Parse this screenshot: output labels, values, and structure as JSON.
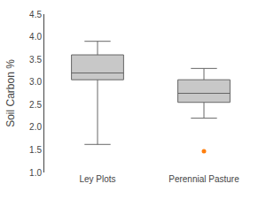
{
  "chart_data": {
    "type": "box",
    "categories": [
      "Ley Plots",
      "Perennial Pasture"
    ],
    "values": [
      {
        "whislo": 1.62,
        "q1": 3.05,
        "med": 3.2,
        "q3": 3.6,
        "whishi": 3.9,
        "fliers": []
      },
      {
        "whislo": 2.2,
        "q1": 2.55,
        "med": 2.75,
        "q3": 3.05,
        "whishi": 3.3,
        "fliers": [
          1.47
        ]
      }
    ],
    "color": "#c8c8c8",
    "ylabel": "Soil Carbon %",
    "ylim": [
      1.0,
      4.5
    ],
    "yticks": [
      {
        "value": 1.0,
        "label": "1.0"
      },
      1.5,
      {
        "value": 2.0,
        "label": "2.0"
      },
      2.5,
      {
        "value": 3.0,
        "label": "3.0"
      },
      3.5,
      {
        "value": 4.0,
        "label": "4.0"
      },
      4.5
    ],
    "grid": false
  }
}
